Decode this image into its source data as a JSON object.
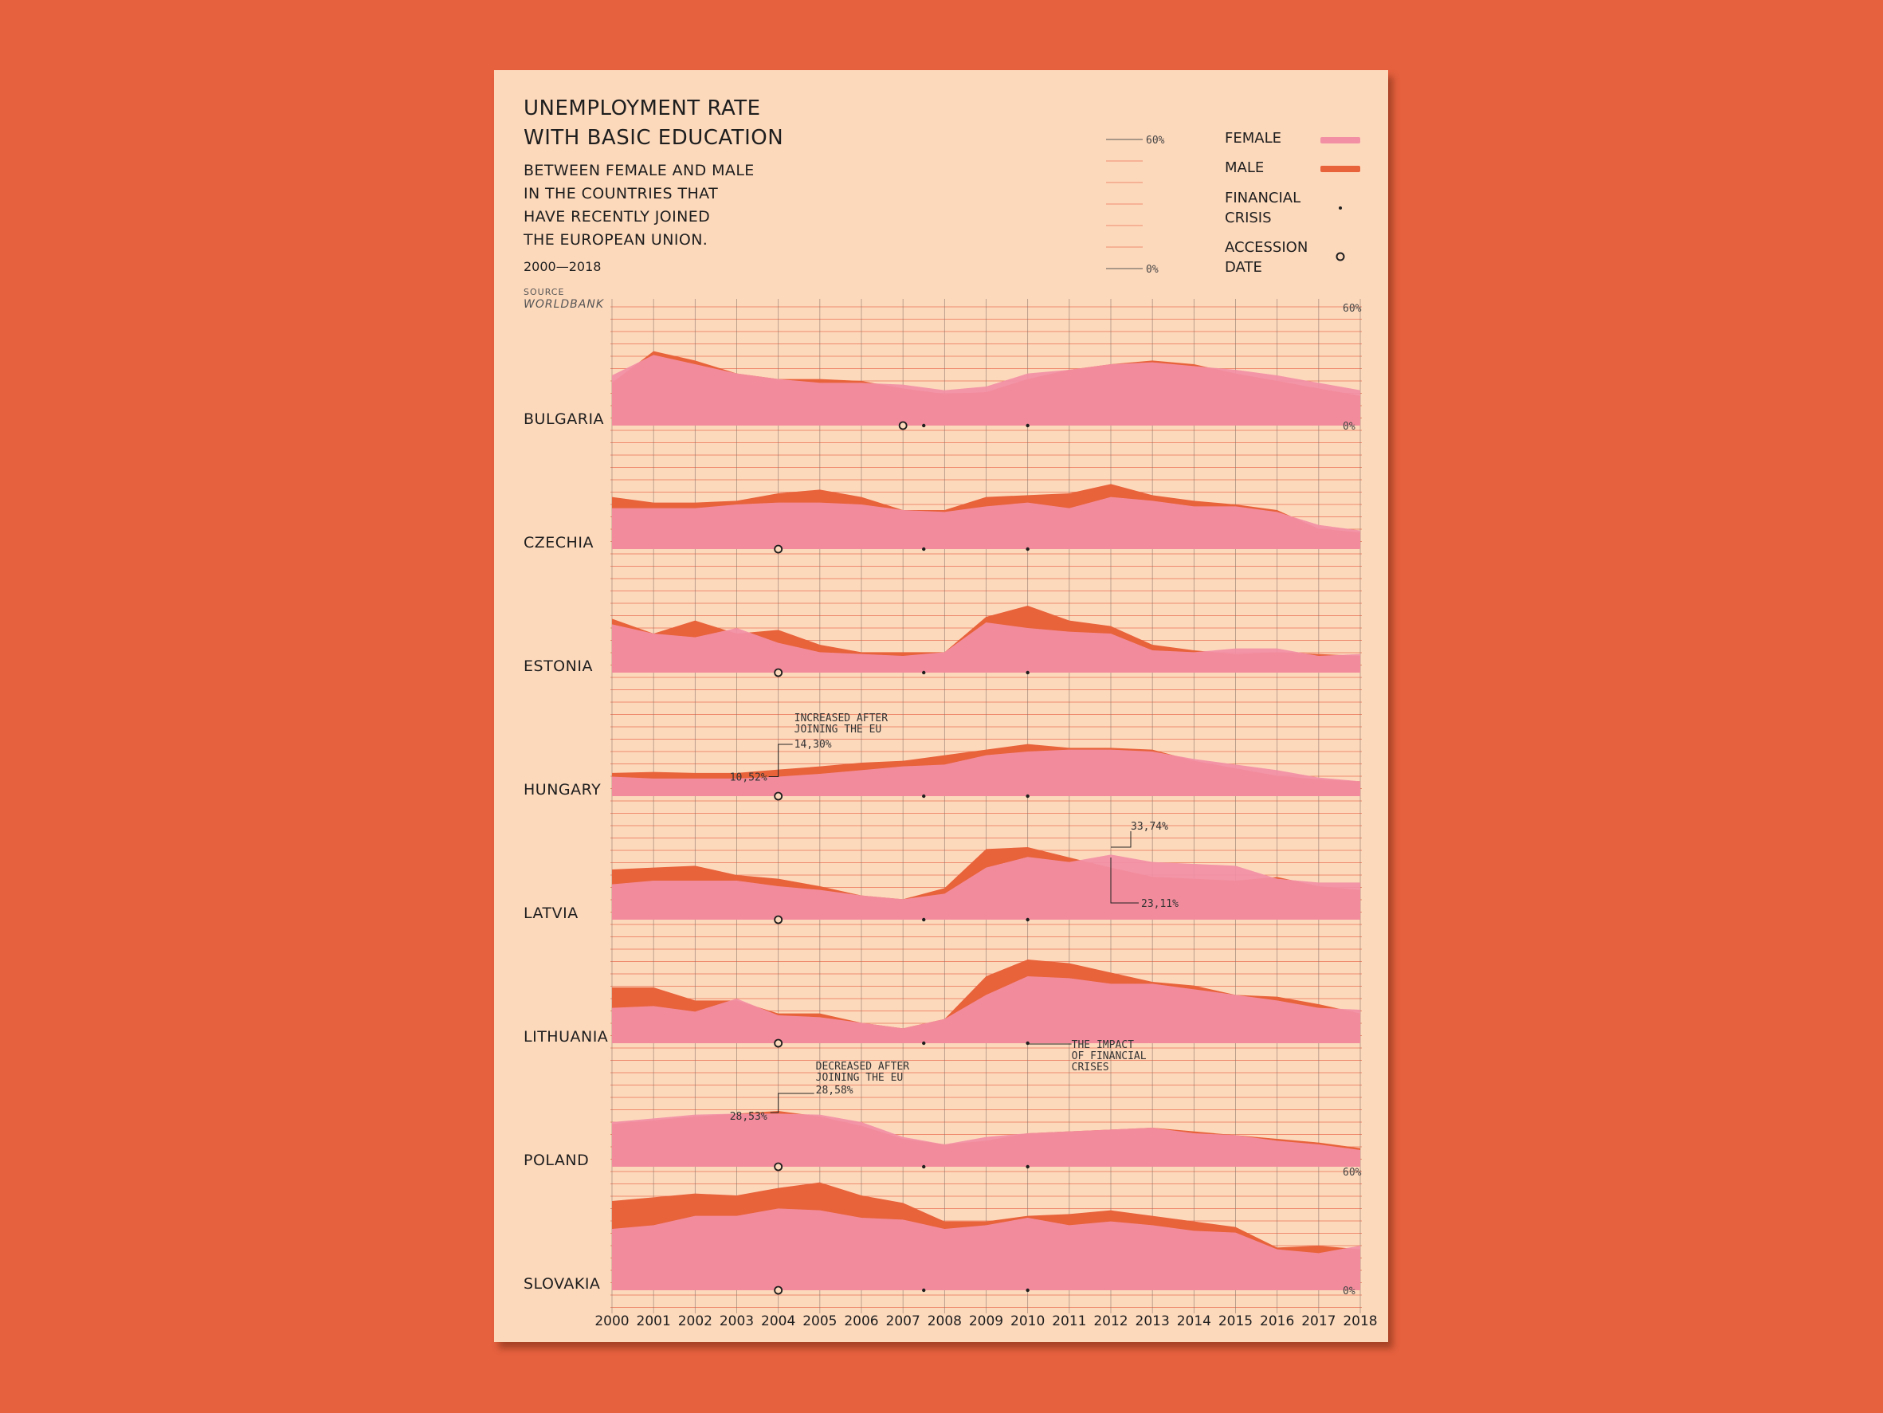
{
  "colors": {
    "background": "#e6613e",
    "paper": "#fdd9bc",
    "female": "#f28fa5",
    "male": "#e8623a",
    "grid_vertical": "#8a7367",
    "grid_horizontal": "#ee8a6e",
    "text": "#1e1e1e"
  },
  "header": {
    "title_line1": "UNEMPLOYMENT RATE",
    "title_line2": "WITH BASIC EDUCATION",
    "subtitle_line1": "BETWEEN FEMALE AND MALE",
    "subtitle_line2": "IN THE COUNTRIES THAT",
    "subtitle_line3": "HAVE RECENTLY JOINED",
    "subtitle_line4": "THE EUROPEAN UNION.",
    "years": "2000—2018",
    "source_label": "SOURCE",
    "source_name": "WORLDBANK"
  },
  "legend": {
    "scale_max": "60%",
    "scale_min": "0%",
    "female": "FEMALE",
    "male": "MALE",
    "crisis_line1": "FINANCIAL",
    "crisis_line2": "CRISIS",
    "accession_line1": "ACCESSION",
    "accession_line2": "DATE"
  },
  "chart_data": {
    "type": "area",
    "title": "UNEMPLOYMENT RATE WITH BASIC EDUCATION",
    "x": [
      2000,
      2001,
      2002,
      2003,
      2004,
      2005,
      2006,
      2007,
      2008,
      2009,
      2010,
      2011,
      2012,
      2013,
      2014,
      2015,
      2016,
      2017,
      2018
    ],
    "ylim": [
      0,
      60
    ],
    "y_tick_labels": [
      "60%",
      "0%"
    ],
    "financial_crisis_years": [
      2007.5,
      2010
    ],
    "panels": [
      {
        "country": "BULGARIA",
        "accession": 2007,
        "female": [
          27,
          38,
          33,
          28,
          25,
          23,
          23,
          22,
          19,
          21,
          28,
          30,
          33,
          34,
          32,
          30,
          27,
          23,
          19
        ],
        "male": [
          23,
          40,
          35,
          28,
          25,
          25,
          24,
          20,
          17,
          18,
          25,
          30,
          33,
          35,
          33,
          28,
          24,
          20,
          16
        ]
      },
      {
        "country": "CZECHIA",
        "accession": 2004,
        "female": [
          22,
          22,
          22,
          24,
          25,
          25,
          24,
          21,
          20,
          23,
          25,
          22,
          28,
          26,
          23,
          23,
          20,
          13,
          10
        ],
        "male": [
          28,
          25,
          25,
          26,
          30,
          32,
          28,
          21,
          21,
          28,
          29,
          30,
          35,
          29,
          26,
          24,
          21,
          11,
          9
        ]
      },
      {
        "country": "ESTONIA",
        "accession": 2004,
        "female": [
          26,
          21,
          19,
          24,
          16,
          11,
          10,
          9,
          11,
          27,
          24,
          22,
          21,
          12,
          11,
          13,
          13,
          9,
          10
        ],
        "male": [
          29,
          21,
          28,
          21,
          23,
          15,
          11,
          11,
          11,
          30,
          36,
          28,
          25,
          15,
          12,
          10,
          11,
          10,
          9
        ]
      },
      {
        "country": "HUNGARY",
        "accession": 2004,
        "female": [
          10.52,
          9.5,
          9.5,
          9.5,
          10.5,
          12,
          14,
          16,
          17,
          22,
          24,
          25,
          25,
          24,
          20,
          17,
          14,
          10,
          8
        ],
        "male": [
          12.5,
          13,
          12.5,
          12.5,
          14.3,
          16,
          18,
          19,
          22,
          25,
          28,
          26,
          26,
          25,
          19,
          15,
          11,
          9,
          8
        ]
      },
      {
        "country": "LATVIA",
        "accession": 2004,
        "female": [
          19,
          21,
          21,
          21,
          18,
          16,
          13,
          11,
          14,
          28,
          33.74,
          31,
          35,
          31,
          30,
          29,
          22,
          20,
          20
        ],
        "male": [
          27,
          28,
          29,
          24,
          22,
          18,
          13,
          11,
          17,
          38,
          39,
          33.5,
          28,
          23.11,
          22,
          21,
          23,
          18,
          16
        ]
      },
      {
        "country": "LITHUANIA",
        "accession": 2004,
        "female": [
          19,
          20,
          17,
          24,
          15,
          14,
          11,
          8,
          13,
          26,
          36,
          35,
          32,
          32,
          29,
          26,
          23,
          19,
          18
        ],
        "male": [
          30,
          30,
          23,
          23,
          16,
          16,
          11,
          8,
          13,
          36,
          45,
          43,
          38,
          33,
          31,
          26,
          25,
          21,
          16
        ]
      },
      {
        "country": "POLAND",
        "accession": 2004,
        "female": [
          24,
          26,
          28,
          28.53,
          28.58,
          28,
          24,
          16,
          12,
          16,
          18,
          19,
          20,
          21,
          18,
          17,
          14,
          12,
          9
        ],
        "male": [
          23,
          25,
          27,
          28.53,
          30,
          27,
          22,
          15,
          12,
          14,
          18,
          19,
          20,
          21,
          19,
          17,
          15,
          13,
          10
        ]
      },
      {
        "country": "SLOVAKIA",
        "accession": 2004,
        "female": [
          33,
          35,
          40,
          40,
          44,
          43,
          39,
          38,
          33,
          35,
          39,
          35,
          37,
          35,
          32,
          31,
          22,
          20,
          24
        ],
        "male": [
          48,
          50,
          52,
          51,
          55,
          58,
          51,
          47,
          37,
          37,
          40,
          41,
          43,
          40,
          37,
          34,
          23,
          24,
          22
        ]
      }
    ],
    "annotations": [
      {
        "panel": 3,
        "text_line1": "INCREASED AFTER",
        "text_line2": "JOINING THE EU",
        "value_after": "14,30%",
        "value_before": "10,52%"
      },
      {
        "panel": 4,
        "value_high": "33,74%",
        "value_low": "23,11%"
      },
      {
        "panel": 5,
        "text_line1": "THE IMPACT",
        "text_line2": "OF FINANCIAL",
        "text_line3": "CRISES"
      },
      {
        "panel": 6,
        "text_line1": "DECREASED AFTER",
        "text_line2": "JOINING THE EU",
        "value_after": "28,58%",
        "value_before": "28,53%"
      }
    ]
  }
}
